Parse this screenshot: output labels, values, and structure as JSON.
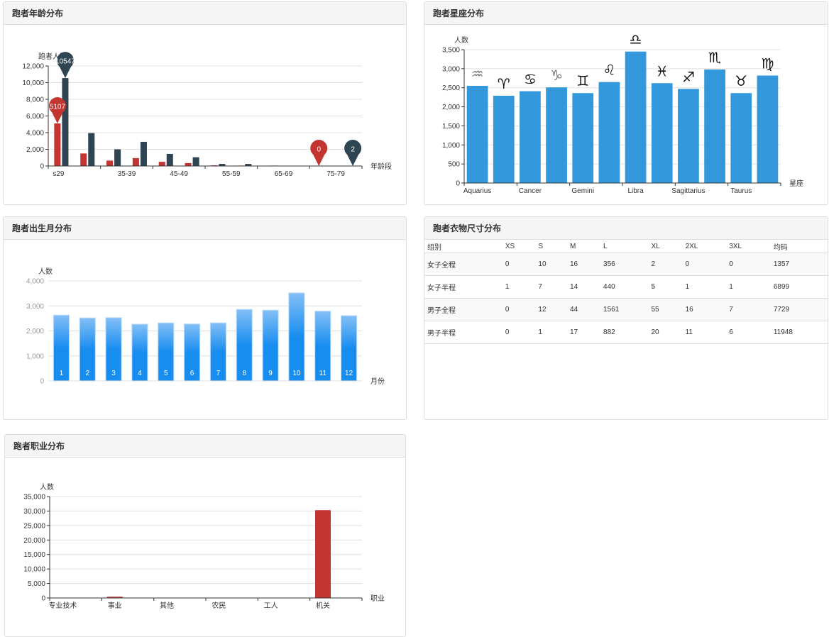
{
  "chart_data": [
    {
      "id": "age",
      "type": "bar",
      "title": "跑者年龄分布",
      "ylabel": "跑者人数",
      "xlabel": "年龄段",
      "ylim": [
        0,
        12000
      ],
      "yticks": [
        0,
        2000,
        4000,
        6000,
        8000,
        10000,
        12000
      ],
      "categories": [
        "s29",
        "",
        "35-39",
        "",
        "45-49",
        "",
        "55-59",
        "",
        "65-69",
        "",
        "75-79",
        ""
      ],
      "series": [
        {
          "color": "#c23531",
          "values": [
            5107,
            1500,
            650,
            950,
            500,
            350,
            80,
            50,
            10,
            5,
            0,
            1
          ]
        },
        {
          "color": "#2f4554",
          "values": [
            10547,
            3950,
            2000,
            2900,
            1450,
            1050,
            250,
            250,
            50,
            30,
            10,
            2
          ]
        }
      ],
      "markers": [
        {
          "series": 0,
          "index": 0,
          "label": "5107"
        },
        {
          "series": 1,
          "index": 0,
          "label": "10547"
        },
        {
          "series": 0,
          "index": 10,
          "label": "0"
        },
        {
          "series": 1,
          "index": 11,
          "label": "2"
        }
      ],
      "grid": true
    },
    {
      "id": "zodiac",
      "type": "bar",
      "title": "跑者星座分布",
      "ylabel": "人数",
      "xlabel": "星座",
      "ylim": [
        0,
        3500
      ],
      "yticks": [
        0,
        500,
        1000,
        1500,
        2000,
        2500,
        3000,
        3500
      ],
      "categories": [
        "Aquarius",
        "",
        "Cancer",
        "",
        "Gemini",
        "",
        "Libra",
        "",
        "Sagittarius",
        "",
        "Taurus",
        ""
      ],
      "icons": [
        "aquarius-icon",
        "aries-icon",
        "cancer-icon",
        "capricorn-icon",
        "gemini-icon",
        "leo-icon",
        "libra-icon",
        "pisces-icon",
        "sagittarius-icon",
        "scorpio-icon",
        "taurus-icon",
        "virgo-icon"
      ],
      "series": [
        {
          "color": "#3398db",
          "values": [
            2550,
            2290,
            2410,
            2510,
            2360,
            2650,
            3450,
            2620,
            2470,
            2980,
            2360,
            2820
          ]
        }
      ],
      "grid": true
    },
    {
      "id": "month",
      "type": "bar",
      "title": "跑者出生月分布",
      "ylabel": "人数",
      "xlabel": "月份",
      "ylim": [
        0,
        4000
      ],
      "yticks": [
        0,
        1000,
        2000,
        3000,
        4000
      ],
      "categories": [
        "1",
        "2",
        "3",
        "4",
        "5",
        "6",
        "7",
        "8",
        "9",
        "10",
        "11",
        "12"
      ],
      "series": [
        {
          "color": "#188df0",
          "values": [
            2630,
            2520,
            2530,
            2270,
            2320,
            2280,
            2320,
            2860,
            2830,
            3520,
            2790,
            2610
          ]
        }
      ],
      "grid": true
    },
    {
      "id": "job",
      "type": "bar",
      "title": "跑者职业分布",
      "ylabel": "人数",
      "xlabel": "职业",
      "ylim": [
        0,
        35000
      ],
      "yticks": [
        0,
        5000,
        10000,
        15000,
        20000,
        25000,
        30000,
        35000
      ],
      "categories": [
        "专业技术",
        "",
        "事业",
        "",
        "其他",
        "",
        "农民",
        "",
        "工人",
        "",
        "机关",
        ""
      ],
      "series": [
        {
          "color": "#c23531",
          "values": [
            100,
            30,
            450,
            50,
            30,
            10,
            40,
            30,
            120,
            20,
            30300,
            60
          ]
        }
      ],
      "grid": true
    }
  ],
  "sizes": {
    "title": "跑者衣物尺寸分布",
    "columns": [
      "组别",
      "XS",
      "S",
      "M",
      "L",
      "XL",
      "2XL",
      "3XL",
      "均码"
    ],
    "rows": [
      [
        "女子全程",
        "0",
        "10",
        "16",
        "356",
        "2",
        "0",
        "0",
        "1357"
      ],
      [
        "女子半程",
        "1",
        "7",
        "14",
        "440",
        "5",
        "1",
        "1",
        "6899"
      ],
      [
        "男子全程",
        "0",
        "12",
        "44",
        "1561",
        "55",
        "16",
        "7",
        "7729"
      ],
      [
        "男子半程",
        "0",
        "1",
        "17",
        "882",
        "20",
        "11",
        "6",
        "11948"
      ]
    ]
  }
}
